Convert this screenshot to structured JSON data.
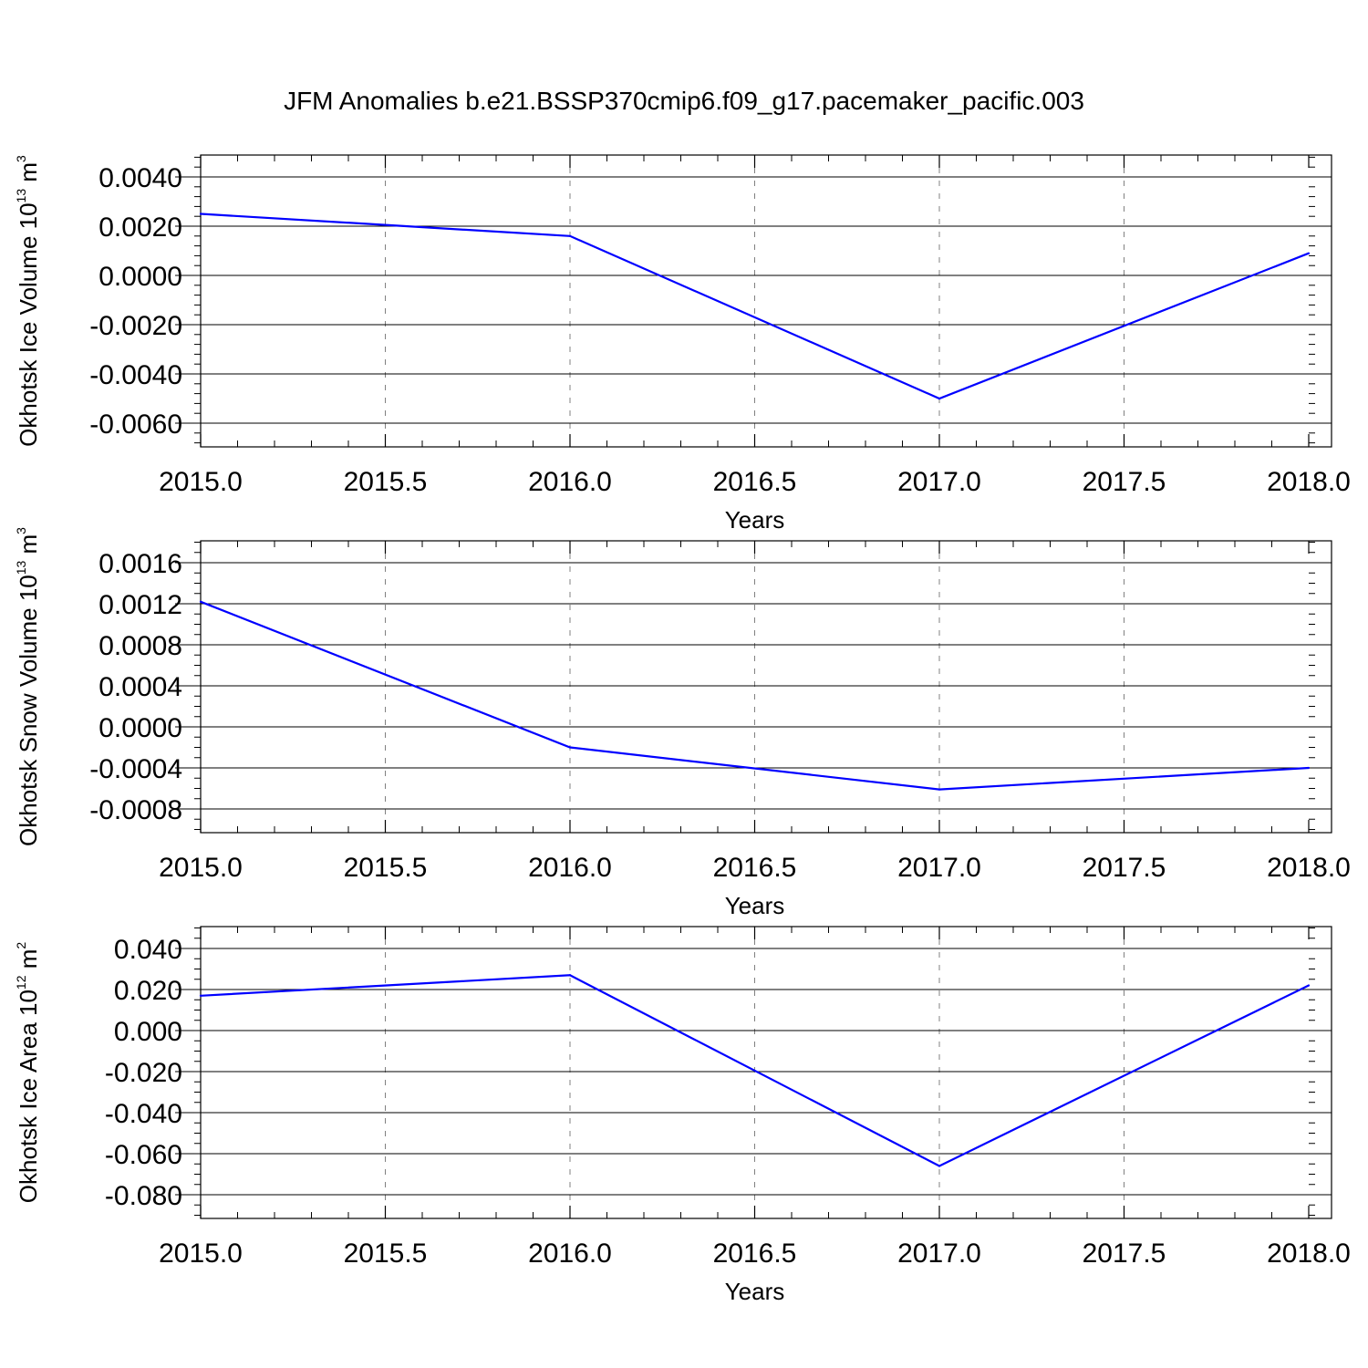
{
  "figure": {
    "title": "JFM Anomalies b.e21.BSSP370cmip6.f09_g17.pacemaker_pacific.003"
  },
  "style": {
    "line_color": "#0000ff",
    "axis_color": "#000000",
    "grid_color": "#808080",
    "background": "#ffffff"
  },
  "chart_data": [
    {
      "type": "line",
      "ylabel": "Okhotsk Ice Volume 10",
      "ylabel_exponent": "13",
      "ylabel_unit": " m",
      "ylabel_unit_exponent": "3",
      "xlabel": "Years",
      "x": [
        2015,
        2016,
        2017,
        2018
      ],
      "series": [
        {
          "values": [
            0.0025,
            0.0016,
            -0.005,
            0.0009
          ]
        }
      ],
      "xlim": [
        2015,
        2018
      ],
      "ylim": [
        -0.006,
        0.004
      ],
      "xticks": [
        2015.0,
        2015.5,
        2016.0,
        2016.5,
        2017.0,
        2017.5,
        2018.0
      ],
      "xtick_labels": [
        "2015.0",
        "2015.5",
        "2016.0",
        "2016.5",
        "2017.0",
        "2017.5",
        "2018.0"
      ],
      "xminor_step": 0.1,
      "yticks": [
        -0.006,
        -0.004,
        -0.002,
        0.0,
        0.002,
        0.004
      ],
      "ytick_labels": [
        "-0.0060",
        "-0.0040",
        "-0.0020",
        "0.0000",
        "0.0020",
        "0.0040"
      ],
      "yminor_step": 0.0004,
      "grid": "vertical-dashed"
    },
    {
      "type": "line",
      "ylabel": "Okhotsk Snow Volume 10",
      "ylabel_exponent": "13",
      "ylabel_unit": " m",
      "ylabel_unit_exponent": "3",
      "xlabel": "Years",
      "x": [
        2015,
        2016,
        2017,
        2018
      ],
      "series": [
        {
          "values": [
            0.00122,
            -0.0002,
            -0.00061,
            -0.0004
          ]
        }
      ],
      "xlim": [
        2015,
        2018
      ],
      "ylim": [
        -0.0008,
        0.0016
      ],
      "xticks": [
        2015.0,
        2015.5,
        2016.0,
        2016.5,
        2017.0,
        2017.5,
        2018.0
      ],
      "xtick_labels": [
        "2015.0",
        "2015.5",
        "2016.0",
        "2016.5",
        "2017.0",
        "2017.5",
        "2018.0"
      ],
      "xminor_step": 0.1,
      "yticks": [
        -0.0008,
        -0.0004,
        0.0,
        0.0004,
        0.0008,
        0.0012,
        0.0016
      ],
      "ytick_labels": [
        "-0.0008",
        "-0.0004",
        "0.0000",
        "0.0004",
        "0.0008",
        "0.0012",
        "0.0016"
      ],
      "yminor_step": 0.0001,
      "grid": "vertical-dashed"
    },
    {
      "type": "line",
      "ylabel": "Okhotsk Ice Area 10",
      "ylabel_exponent": "12",
      "ylabel_unit": " m",
      "ylabel_unit_exponent": "2",
      "xlabel": "Years",
      "x": [
        2015,
        2016,
        2017,
        2018
      ],
      "series": [
        {
          "values": [
            0.017,
            0.027,
            -0.066,
            0.022
          ]
        }
      ],
      "xlim": [
        2015,
        2018
      ],
      "ylim": [
        -0.08,
        0.04
      ],
      "xticks": [
        2015.0,
        2015.5,
        2016.0,
        2016.5,
        2017.0,
        2017.5,
        2018.0
      ],
      "xtick_labels": [
        "2015.0",
        "2015.5",
        "2016.0",
        "2016.5",
        "2017.0",
        "2017.5",
        "2018.0"
      ],
      "xminor_step": 0.1,
      "yticks": [
        -0.08,
        -0.06,
        -0.04,
        -0.02,
        0.0,
        0.02,
        0.04
      ],
      "ytick_labels": [
        "-0.080",
        "-0.060",
        "-0.040",
        "-0.020",
        "0.000",
        "0.020",
        "0.040"
      ],
      "yminor_step": 0.005,
      "grid": "vertical-dashed"
    }
  ]
}
